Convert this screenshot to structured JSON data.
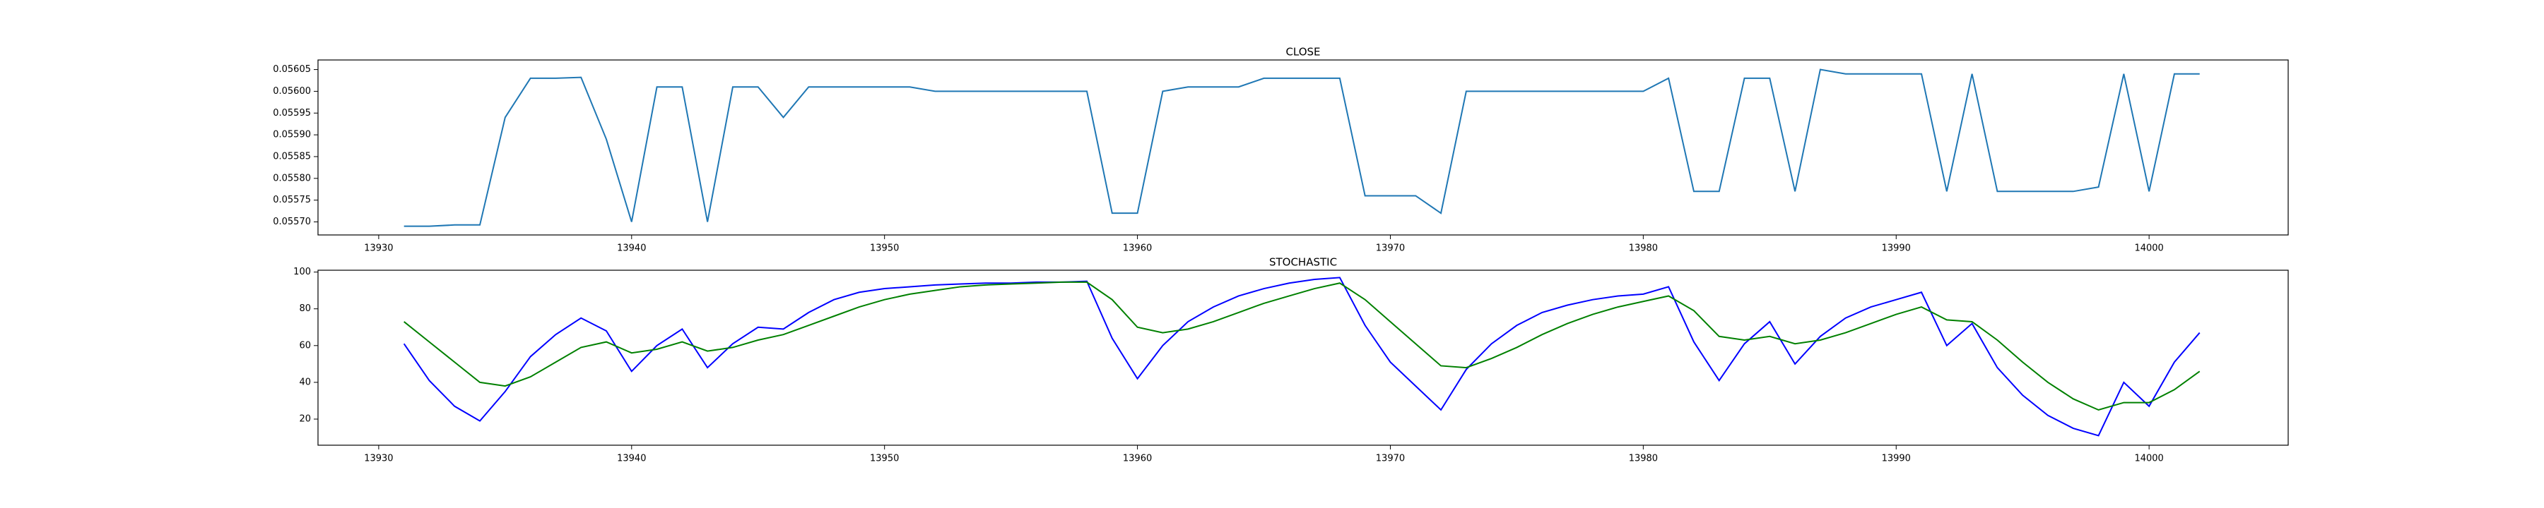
{
  "chart_data": [
    {
      "type": "line",
      "title": "CLOSE",
      "x": [
        13931,
        13932,
        13933,
        13934,
        13935,
        13936,
        13937,
        13938,
        13939,
        13940,
        13941,
        13942,
        13943,
        13944,
        13945,
        13946,
        13947,
        13948,
        13949,
        13950,
        13951,
        13952,
        13953,
        13954,
        13955,
        13956,
        13957,
        13958,
        13959,
        13960,
        13961,
        13962,
        13963,
        13964,
        13965,
        13966,
        13967,
        13968,
        13969,
        13970,
        13971,
        13972,
        13973,
        13974,
        13975,
        13976,
        13977,
        13978,
        13979,
        13980,
        13981,
        13982,
        13983,
        13984,
        13985,
        13986,
        13987,
        13988,
        13989,
        13990,
        13991,
        13992,
        13993,
        13994,
        13995,
        13996,
        13997,
        13998,
        13999,
        14000,
        14001,
        14002
      ],
      "series": [
        {
          "color": "#1f77b4",
          "values": [
            0.05569,
            0.05569,
            0.055693,
            0.055693,
            0.05594,
            0.05603,
            0.05603,
            0.056032,
            0.05589,
            0.0557,
            0.05601,
            0.05601,
            0.0557,
            0.05601,
            0.05601,
            0.05594,
            0.05601,
            0.05601,
            0.05601,
            0.05601,
            0.05601,
            0.056,
            0.056,
            0.056,
            0.056,
            0.056,
            0.056,
            0.056,
            0.05572,
            0.05572,
            0.056,
            0.05601,
            0.05601,
            0.05601,
            0.05603,
            0.05603,
            0.05603,
            0.05603,
            0.05576,
            0.05576,
            0.05576,
            0.05572,
            0.056,
            0.056,
            0.056,
            0.056,
            0.056,
            0.056,
            0.056,
            0.056,
            0.05603,
            0.05577,
            0.05577,
            0.05603,
            0.05603,
            0.05577,
            0.05605,
            0.05604,
            0.05604,
            0.05604,
            0.05604,
            0.05577,
            0.05604,
            0.05577,
            0.05577,
            0.05577,
            0.05577,
            0.05578,
            0.05604,
            0.05577,
            0.05604,
            0.05604
          ]
        }
      ],
      "xlim": [
        13927.6,
        14005.5
      ],
      "xticks": [
        13930,
        13940,
        13950,
        13960,
        13970,
        13980,
        13990,
        14000
      ],
      "ylim": [
        0.05567,
        0.056072
      ],
      "yticks": [
        {
          "value": 0.0557,
          "label": "0.05570"
        },
        {
          "value": 0.05575,
          "label": "0.05575"
        },
        {
          "value": 0.0558,
          "label": "0.05580"
        },
        {
          "value": 0.05585,
          "label": "0.05585"
        },
        {
          "value": 0.0559,
          "label": "0.05590"
        },
        {
          "value": 0.05595,
          "label": "0.05595"
        },
        {
          "value": 0.056,
          "label": "0.05600"
        },
        {
          "value": 0.05605,
          "label": "0.05605"
        }
      ]
    },
    {
      "type": "line",
      "title": "STOCHASTIC",
      "x": [
        13931,
        13932,
        13933,
        13934,
        13935,
        13936,
        13937,
        13938,
        13939,
        13940,
        13941,
        13942,
        13943,
        13944,
        13945,
        13946,
        13947,
        13948,
        13949,
        13950,
        13951,
        13952,
        13953,
        13954,
        13955,
        13956,
        13957,
        13958,
        13959,
        13960,
        13961,
        13962,
        13963,
        13964,
        13965,
        13966,
        13967,
        13968,
        13969,
        13970,
        13971,
        13972,
        13973,
        13974,
        13975,
        13976,
        13977,
        13978,
        13979,
        13980,
        13981,
        13982,
        13983,
        13984,
        13985,
        13986,
        13987,
        13988,
        13989,
        13990,
        13991,
        13992,
        13993,
        13994,
        13995,
        13996,
        13997,
        13998,
        13999,
        14000,
        14001,
        14002
      ],
      "series": [
        {
          "color": "blue",
          "values": [
            61,
            41,
            27,
            19,
            35,
            54,
            66,
            75,
            68,
            46,
            60,
            69,
            48,
            61,
            70,
            69,
            78,
            85,
            89,
            91,
            92,
            93,
            93.5,
            94,
            94,
            94.5,
            94.5,
            95,
            64,
            42,
            60,
            73,
            81,
            87,
            91,
            94,
            96,
            97,
            71,
            51,
            38,
            25,
            47,
            61,
            71,
            78,
            82,
            85,
            87,
            88,
            92,
            62,
            41,
            61,
            73,
            50,
            65,
            75,
            81,
            85,
            89,
            60,
            72,
            48,
            33,
            22,
            15,
            11,
            40,
            27,
            51,
            67
          ]
        },
        {
          "color": "green",
          "values": [
            73,
            62,
            51,
            40,
            38,
            43,
            51,
            59,
            62,
            56,
            58,
            62,
            57,
            59,
            63,
            66,
            71,
            76,
            81,
            85,
            88,
            90,
            92,
            93,
            93.5,
            94,
            94.5,
            94.5,
            85,
            70,
            67,
            69,
            73,
            78,
            83,
            87,
            91,
            94,
            85,
            73,
            61,
            49,
            48,
            53,
            59,
            66,
            72,
            77,
            81,
            84,
            87,
            79,
            65,
            63,
            65,
            61,
            63,
            67,
            72,
            77,
            81,
            74,
            73,
            63,
            51,
            40,
            31,
            25,
            29,
            29,
            36,
            46
          ]
        }
      ],
      "xlim": [
        13927.6,
        14005.5
      ],
      "xticks": [
        13930,
        13940,
        13950,
        13960,
        13970,
        13980,
        13990,
        14000
      ],
      "ylim": [
        5.8,
        101
      ],
      "yticks": [
        20,
        40,
        60,
        80,
        100
      ]
    }
  ]
}
